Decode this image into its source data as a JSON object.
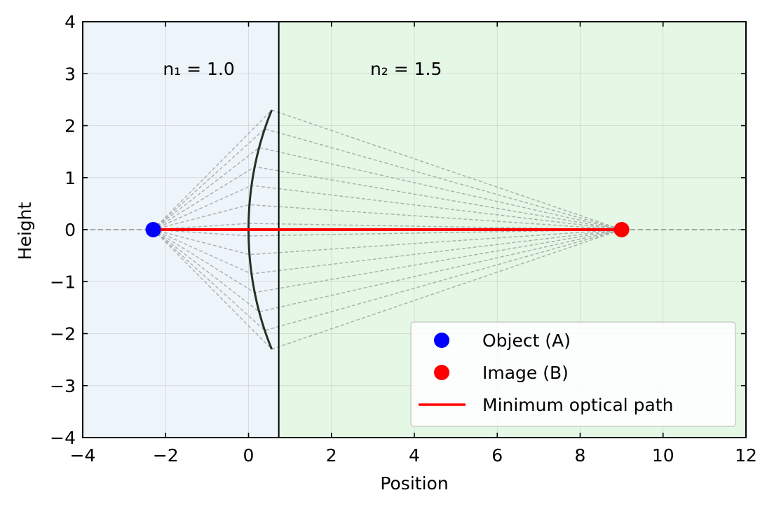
{
  "chart_data": {
    "type": "scatter",
    "title": "",
    "xlabel": "Position",
    "ylabel": "Height",
    "xlim": [
      -4,
      12
    ],
    "ylim": [
      -4,
      4
    ],
    "x_ticks": [
      -4,
      -2,
      0,
      2,
      4,
      6,
      8,
      10,
      12
    ],
    "y_ticks": [
      -4,
      -3,
      -2,
      -1,
      0,
      1,
      2,
      3,
      4
    ],
    "x_tick_labels": [
      "−4",
      "−2",
      "0",
      "2",
      "4",
      "6",
      "8",
      "10",
      "12"
    ],
    "y_tick_labels": [
      "−4",
      "−3",
      "−2",
      "−1",
      "0",
      "1",
      "2",
      "3",
      "4"
    ],
    "grid": true,
    "legend_position": "lower-right",
    "regions": [
      {
        "label": "n₁ = 1.0",
        "x_from": -4,
        "x_to": 0.73,
        "color": "#eef5fa",
        "label_x": -1.2,
        "label_y": 3.1
      },
      {
        "label": "n₂ = 1.5",
        "x_from": 0.73,
        "x_to": 12,
        "color": "#e5f8e6",
        "label_x": 3.8,
        "label_y": 3.1
      }
    ],
    "boundary_x": 0.73,
    "optical_axis_y": 0,
    "surface": {
      "vertex_x": 0.0,
      "radius": 5.0,
      "y_min": -2.3,
      "y_max": 2.3,
      "color": "#223322"
    },
    "object_point": {
      "name": "Object (A)",
      "x": -2.3,
      "y": 0,
      "color": "#0000ff"
    },
    "image_point": {
      "name": "Image (B)",
      "x": 9.0,
      "y": 0,
      "color": "#ff0000"
    },
    "ray_heights": [
      -2.3,
      -1.94,
      -1.58,
      -1.21,
      -0.85,
      -0.48,
      -0.12,
      0.12,
      0.48,
      0.85,
      1.21,
      1.58,
      1.94,
      2.3
    ],
    "minimum_path": {
      "name": "Minimum optical path",
      "from_x": -2.3,
      "to_x": 9.0,
      "y": 0,
      "color": "#ff0000"
    },
    "series": [
      {
        "name": "Object (A)",
        "marker": "circle",
        "color": "#0000ff"
      },
      {
        "name": "Image (B)",
        "marker": "circle",
        "color": "#ff0000"
      },
      {
        "name": "Minimum optical path",
        "marker": "line",
        "color": "#ff0000"
      }
    ]
  }
}
